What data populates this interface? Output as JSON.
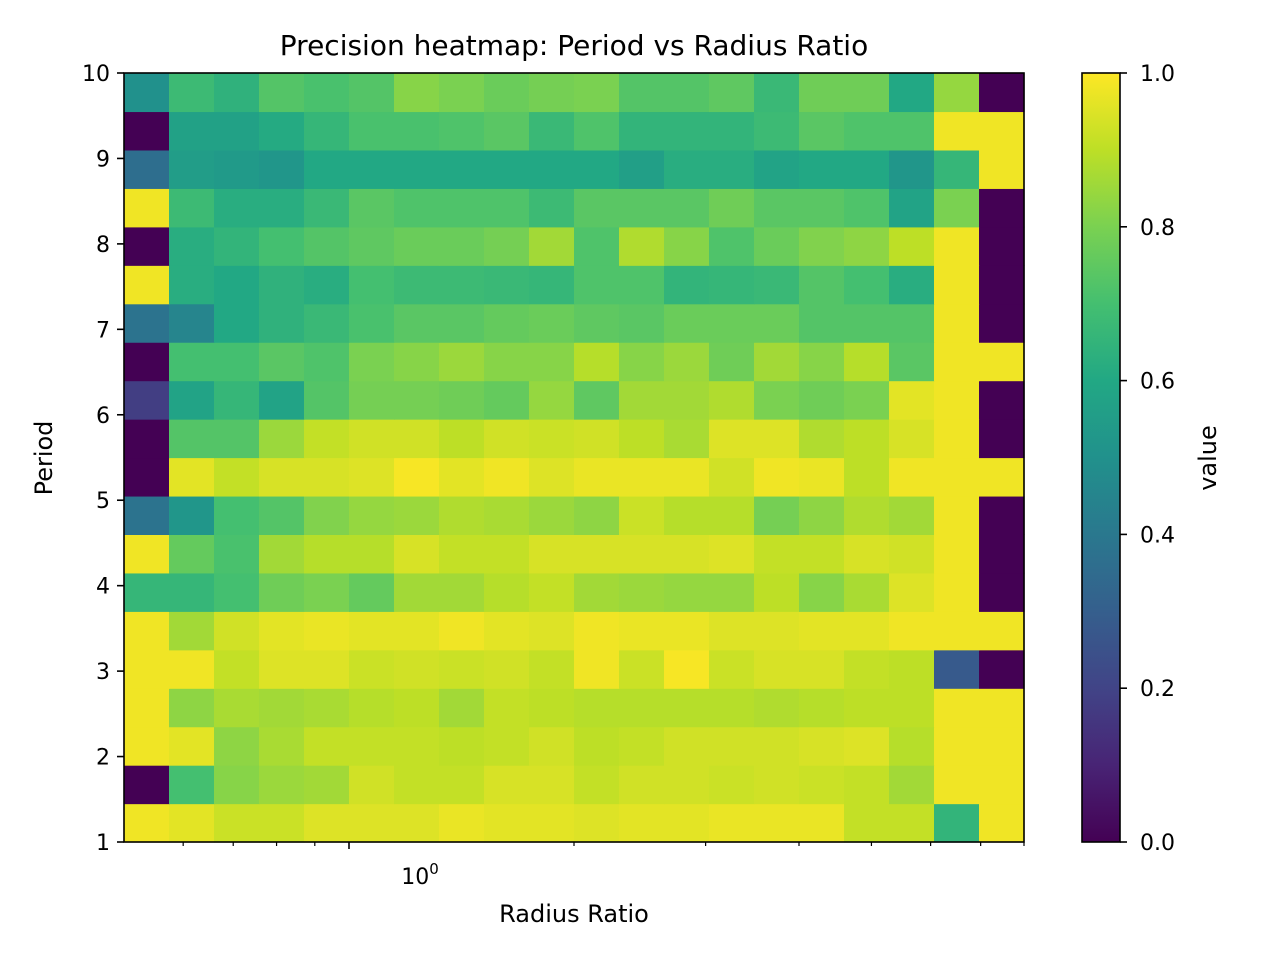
{
  "chart_data": {
    "type": "heatmap",
    "title": "Precision heatmap: Period vs Radius Ratio",
    "xlabel": "Radius Ratio",
    "ylabel": "Period",
    "colorbar_label": "value",
    "colormap": "viridis",
    "x_scale": "log",
    "x_tick_label": {
      "base": "10",
      "exponent": "0"
    },
    "xlim": [
      0.5,
      8.0
    ],
    "ylim": [
      1,
      10
    ],
    "y_ticks": [
      "1",
      "2",
      "3",
      "4",
      "5",
      "6",
      "7",
      "8",
      "9",
      "10"
    ],
    "colorbar_ticks": [
      "0.0",
      "0.2",
      "0.4",
      "0.6",
      "0.8",
      "1.0"
    ],
    "vlim": [
      0.0,
      1.0
    ],
    "n_cols": 20,
    "n_rows": 20,
    "row_order": "bottom-to-top",
    "values": [
      [
        0.98,
        0.96,
        0.92,
        0.92,
        0.95,
        0.95,
        0.95,
        0.97,
        0.96,
        0.96,
        0.95,
        0.96,
        0.96,
        0.97,
        0.97,
        0.97,
        0.91,
        0.91,
        0.65,
        0.98
      ],
      [
        0.0,
        0.7,
        0.82,
        0.85,
        0.86,
        0.93,
        0.91,
        0.91,
        0.94,
        0.94,
        0.91,
        0.93,
        0.93,
        0.92,
        0.93,
        0.92,
        0.91,
        0.86,
        0.98,
        0.98
      ],
      [
        0.98,
        0.96,
        0.83,
        0.87,
        0.91,
        0.91,
        0.91,
        0.9,
        0.91,
        0.93,
        0.9,
        0.91,
        0.93,
        0.93,
        0.93,
        0.94,
        0.95,
        0.89,
        0.98,
        0.98
      ],
      [
        0.98,
        0.83,
        0.87,
        0.86,
        0.87,
        0.89,
        0.9,
        0.86,
        0.91,
        0.9,
        0.89,
        0.89,
        0.89,
        0.89,
        0.88,
        0.89,
        0.9,
        0.9,
        0.98,
        0.98
      ],
      [
        0.98,
        0.98,
        0.91,
        0.95,
        0.95,
        0.92,
        0.93,
        0.92,
        0.93,
        0.91,
        0.98,
        0.92,
        0.99,
        0.92,
        0.94,
        0.94,
        0.91,
        0.9,
        0.28,
        0.0
      ],
      [
        0.98,
        0.86,
        0.93,
        0.96,
        0.97,
        0.96,
        0.96,
        0.98,
        0.96,
        0.95,
        0.98,
        0.97,
        0.97,
        0.95,
        0.95,
        0.96,
        0.96,
        0.98,
        0.98,
        0.98
      ],
      [
        0.66,
        0.66,
        0.7,
        0.78,
        0.8,
        0.76,
        0.86,
        0.86,
        0.89,
        0.91,
        0.86,
        0.85,
        0.84,
        0.84,
        0.9,
        0.82,
        0.87,
        0.95,
        0.98,
        0.0
      ],
      [
        0.98,
        0.76,
        0.71,
        0.86,
        0.89,
        0.89,
        0.94,
        0.91,
        0.91,
        0.94,
        0.94,
        0.94,
        0.94,
        0.95,
        0.91,
        0.91,
        0.94,
        0.93,
        0.98,
        0.0
      ],
      [
        0.38,
        0.52,
        0.7,
        0.73,
        0.81,
        0.84,
        0.85,
        0.88,
        0.87,
        0.85,
        0.83,
        0.92,
        0.89,
        0.89,
        0.79,
        0.83,
        0.88,
        0.86,
        0.98,
        0.0
      ],
      [
        0.0,
        0.96,
        0.91,
        0.94,
        0.94,
        0.95,
        0.99,
        0.96,
        0.98,
        0.95,
        0.97,
        0.97,
        0.97,
        0.93,
        0.98,
        0.97,
        0.9,
        0.98,
        0.98,
        0.98
      ],
      [
        0.0,
        0.73,
        0.73,
        0.85,
        0.91,
        0.93,
        0.93,
        0.9,
        0.93,
        0.92,
        0.93,
        0.9,
        0.87,
        0.95,
        0.95,
        0.88,
        0.9,
        0.94,
        0.98,
        0.0
      ],
      [
        0.18,
        0.58,
        0.66,
        0.58,
        0.73,
        0.79,
        0.79,
        0.78,
        0.76,
        0.84,
        0.75,
        0.86,
        0.86,
        0.88,
        0.8,
        0.78,
        0.8,
        0.96,
        0.98,
        0.0
      ],
      [
        0.0,
        0.7,
        0.7,
        0.74,
        0.72,
        0.8,
        0.82,
        0.85,
        0.82,
        0.82,
        0.89,
        0.82,
        0.85,
        0.78,
        0.86,
        0.82,
        0.89,
        0.74,
        0.98,
        0.98
      ],
      [
        0.38,
        0.45,
        0.6,
        0.64,
        0.67,
        0.71,
        0.74,
        0.74,
        0.76,
        0.77,
        0.75,
        0.74,
        0.77,
        0.77,
        0.77,
        0.73,
        0.73,
        0.73,
        0.98,
        0.0
      ],
      [
        0.98,
        0.62,
        0.6,
        0.64,
        0.62,
        0.7,
        0.68,
        0.68,
        0.67,
        0.66,
        0.72,
        0.72,
        0.65,
        0.66,
        0.67,
        0.73,
        0.7,
        0.62,
        0.98,
        0.0
      ],
      [
        0.0,
        0.62,
        0.65,
        0.7,
        0.73,
        0.75,
        0.77,
        0.77,
        0.79,
        0.86,
        0.72,
        0.88,
        0.82,
        0.72,
        0.77,
        0.81,
        0.83,
        0.9,
        0.98,
        0.0
      ],
      [
        0.98,
        0.68,
        0.62,
        0.62,
        0.67,
        0.74,
        0.72,
        0.72,
        0.72,
        0.68,
        0.74,
        0.74,
        0.74,
        0.78,
        0.74,
        0.74,
        0.72,
        0.58,
        0.8,
        0.0
      ],
      [
        0.36,
        0.55,
        0.54,
        0.52,
        0.6,
        0.6,
        0.6,
        0.6,
        0.6,
        0.6,
        0.6,
        0.56,
        0.62,
        0.62,
        0.58,
        0.6,
        0.6,
        0.52,
        0.66,
        0.98
      ],
      [
        0.0,
        0.57,
        0.57,
        0.61,
        0.66,
        0.71,
        0.71,
        0.72,
        0.74,
        0.67,
        0.72,
        0.65,
        0.65,
        0.65,
        0.68,
        0.74,
        0.72,
        0.72,
        0.98,
        0.98
      ],
      [
        0.5,
        0.68,
        0.64,
        0.73,
        0.71,
        0.73,
        0.82,
        0.8,
        0.77,
        0.79,
        0.8,
        0.73,
        0.73,
        0.75,
        0.67,
        0.78,
        0.78,
        0.6,
        0.84,
        0.0
      ]
    ]
  }
}
